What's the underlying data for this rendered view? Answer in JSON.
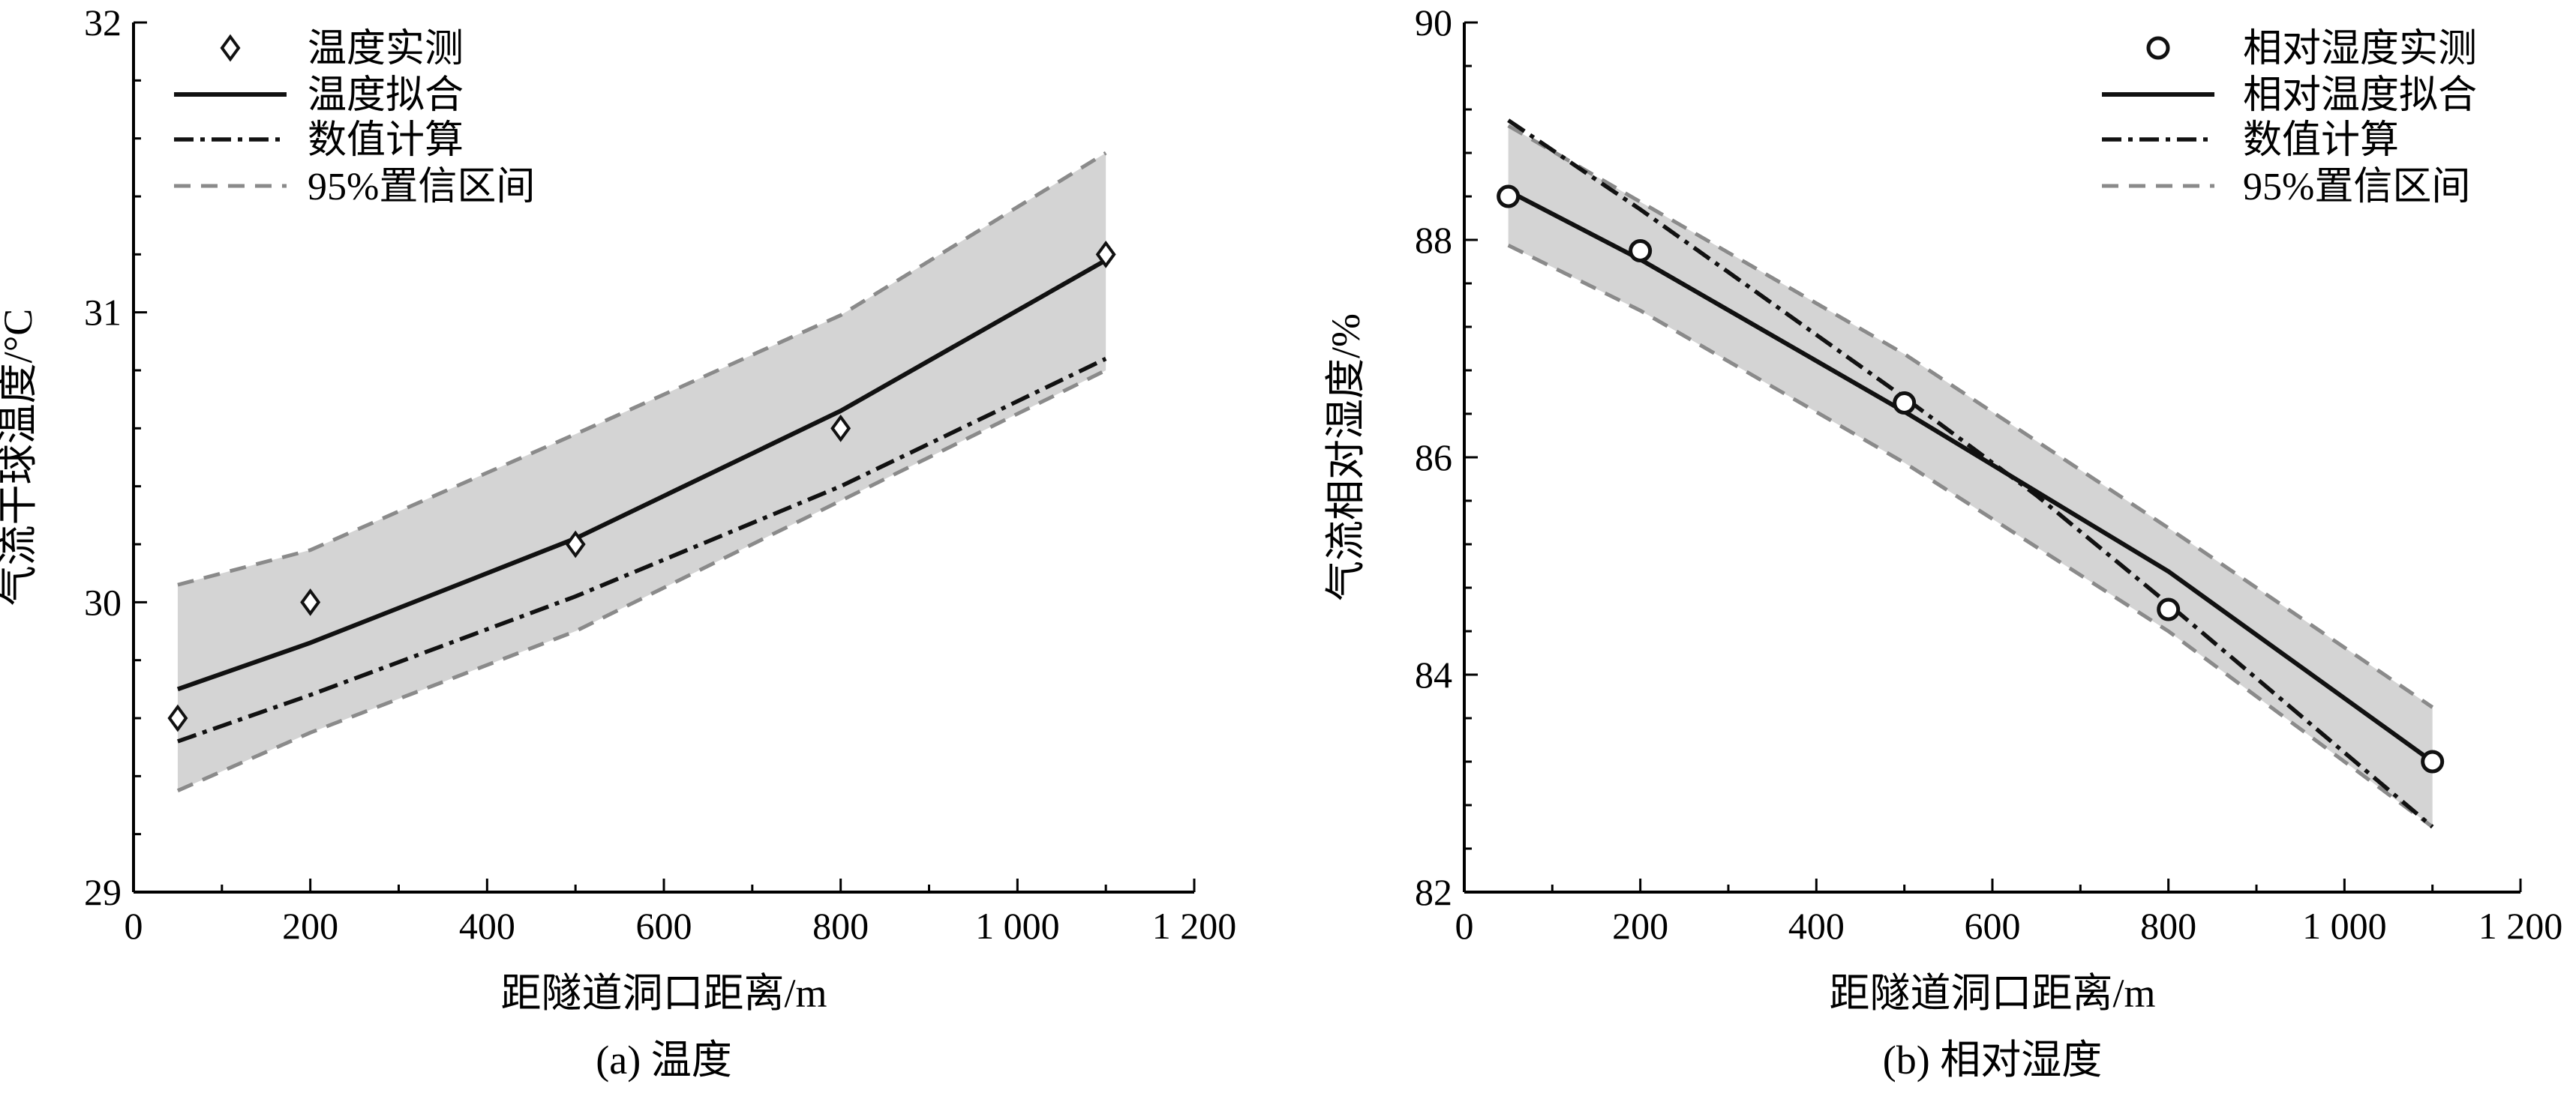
{
  "chart_data": [
    {
      "type": "line",
      "caption": "(a) 温度",
      "xlabel": "距隧道洞口距离/m",
      "ylabel": "气流干球温度/°C",
      "xlim": [
        0,
        1200
      ],
      "ylim": [
        29,
        32
      ],
      "xticks": [
        0,
        200,
        400,
        600,
        800,
        1000,
        1200
      ],
      "xtick_labels": [
        "0",
        "200",
        "400",
        "600",
        "800",
        "1 000",
        "1 200"
      ],
      "yticks": [
        29,
        30,
        31,
        32
      ],
      "ytick_labels": [
        "29",
        "30",
        "31",
        "32"
      ],
      "legend_position": "top-left",
      "legend": [
        "温度实测",
        "温度拟合",
        "数值计算",
        "95%置信区间"
      ],
      "series": [
        {
          "name": "温度实测",
          "style": "marker-diamond",
          "x": [
            50,
            200,
            500,
            800,
            1100
          ],
          "y": [
            29.6,
            30.0,
            30.2,
            30.6,
            31.2
          ]
        },
        {
          "name": "温度拟合",
          "style": "solid",
          "x": [
            50,
            200,
            500,
            800,
            1100
          ],
          "y": [
            29.7,
            29.86,
            30.22,
            30.66,
            31.18
          ]
        },
        {
          "name": "数值计算",
          "style": "dashdot",
          "x": [
            50,
            200,
            500,
            800,
            1100
          ],
          "y": [
            29.52,
            29.68,
            30.02,
            30.4,
            30.84
          ]
        },
        {
          "name": "95%置信区间",
          "style": "dashed-band",
          "x": [
            50,
            200,
            500,
            800,
            1100
          ],
          "upper": [
            30.06,
            30.18,
            30.58,
            30.99,
            31.55
          ],
          "lower": [
            29.35,
            29.55,
            29.9,
            30.35,
            30.8
          ]
        }
      ]
    },
    {
      "type": "line",
      "caption": "(b) 相对湿度",
      "xlabel": "距隧道洞口距离/m",
      "ylabel": "气流相对湿度/%",
      "xlim": [
        0,
        1200
      ],
      "ylim": [
        82,
        90
      ],
      "xticks": [
        0,
        200,
        400,
        600,
        800,
        1000,
        1200
      ],
      "xtick_labels": [
        "0",
        "200",
        "400",
        "600",
        "800",
        "1 000",
        "1 200"
      ],
      "yticks": [
        82,
        84,
        86,
        88,
        90
      ],
      "ytick_labels": [
        "82",
        "84",
        "86",
        "88",
        "90"
      ],
      "legend_position": "top-right",
      "legend": [
        "相对湿度实测",
        "相对温度拟合",
        "数值计算",
        "95%置信区间"
      ],
      "series": [
        {
          "name": "相对湿度实测",
          "style": "marker-circle",
          "x": [
            50,
            200,
            500,
            800,
            1100
          ],
          "y": [
            88.4,
            87.9,
            86.5,
            84.6,
            83.2
          ]
        },
        {
          "name": "相对温度拟合",
          "style": "solid",
          "x": [
            50,
            200,
            500,
            800,
            1100
          ],
          "y": [
            88.45,
            87.82,
            86.42,
            84.95,
            83.2
          ]
        },
        {
          "name": "数值计算",
          "style": "dashdot",
          "x": [
            50,
            200,
            500,
            650,
            800,
            1100
          ],
          "y": [
            89.1,
            88.28,
            86.55,
            85.65,
            84.65,
            82.6
          ]
        },
        {
          "name": "95%置信区间",
          "style": "dashed-band",
          "x": [
            50,
            200,
            500,
            800,
            1100
          ],
          "upper": [
            89.05,
            88.35,
            86.95,
            85.35,
            83.7
          ],
          "lower": [
            87.95,
            87.35,
            85.95,
            84.4,
            82.6
          ]
        }
      ]
    }
  ]
}
